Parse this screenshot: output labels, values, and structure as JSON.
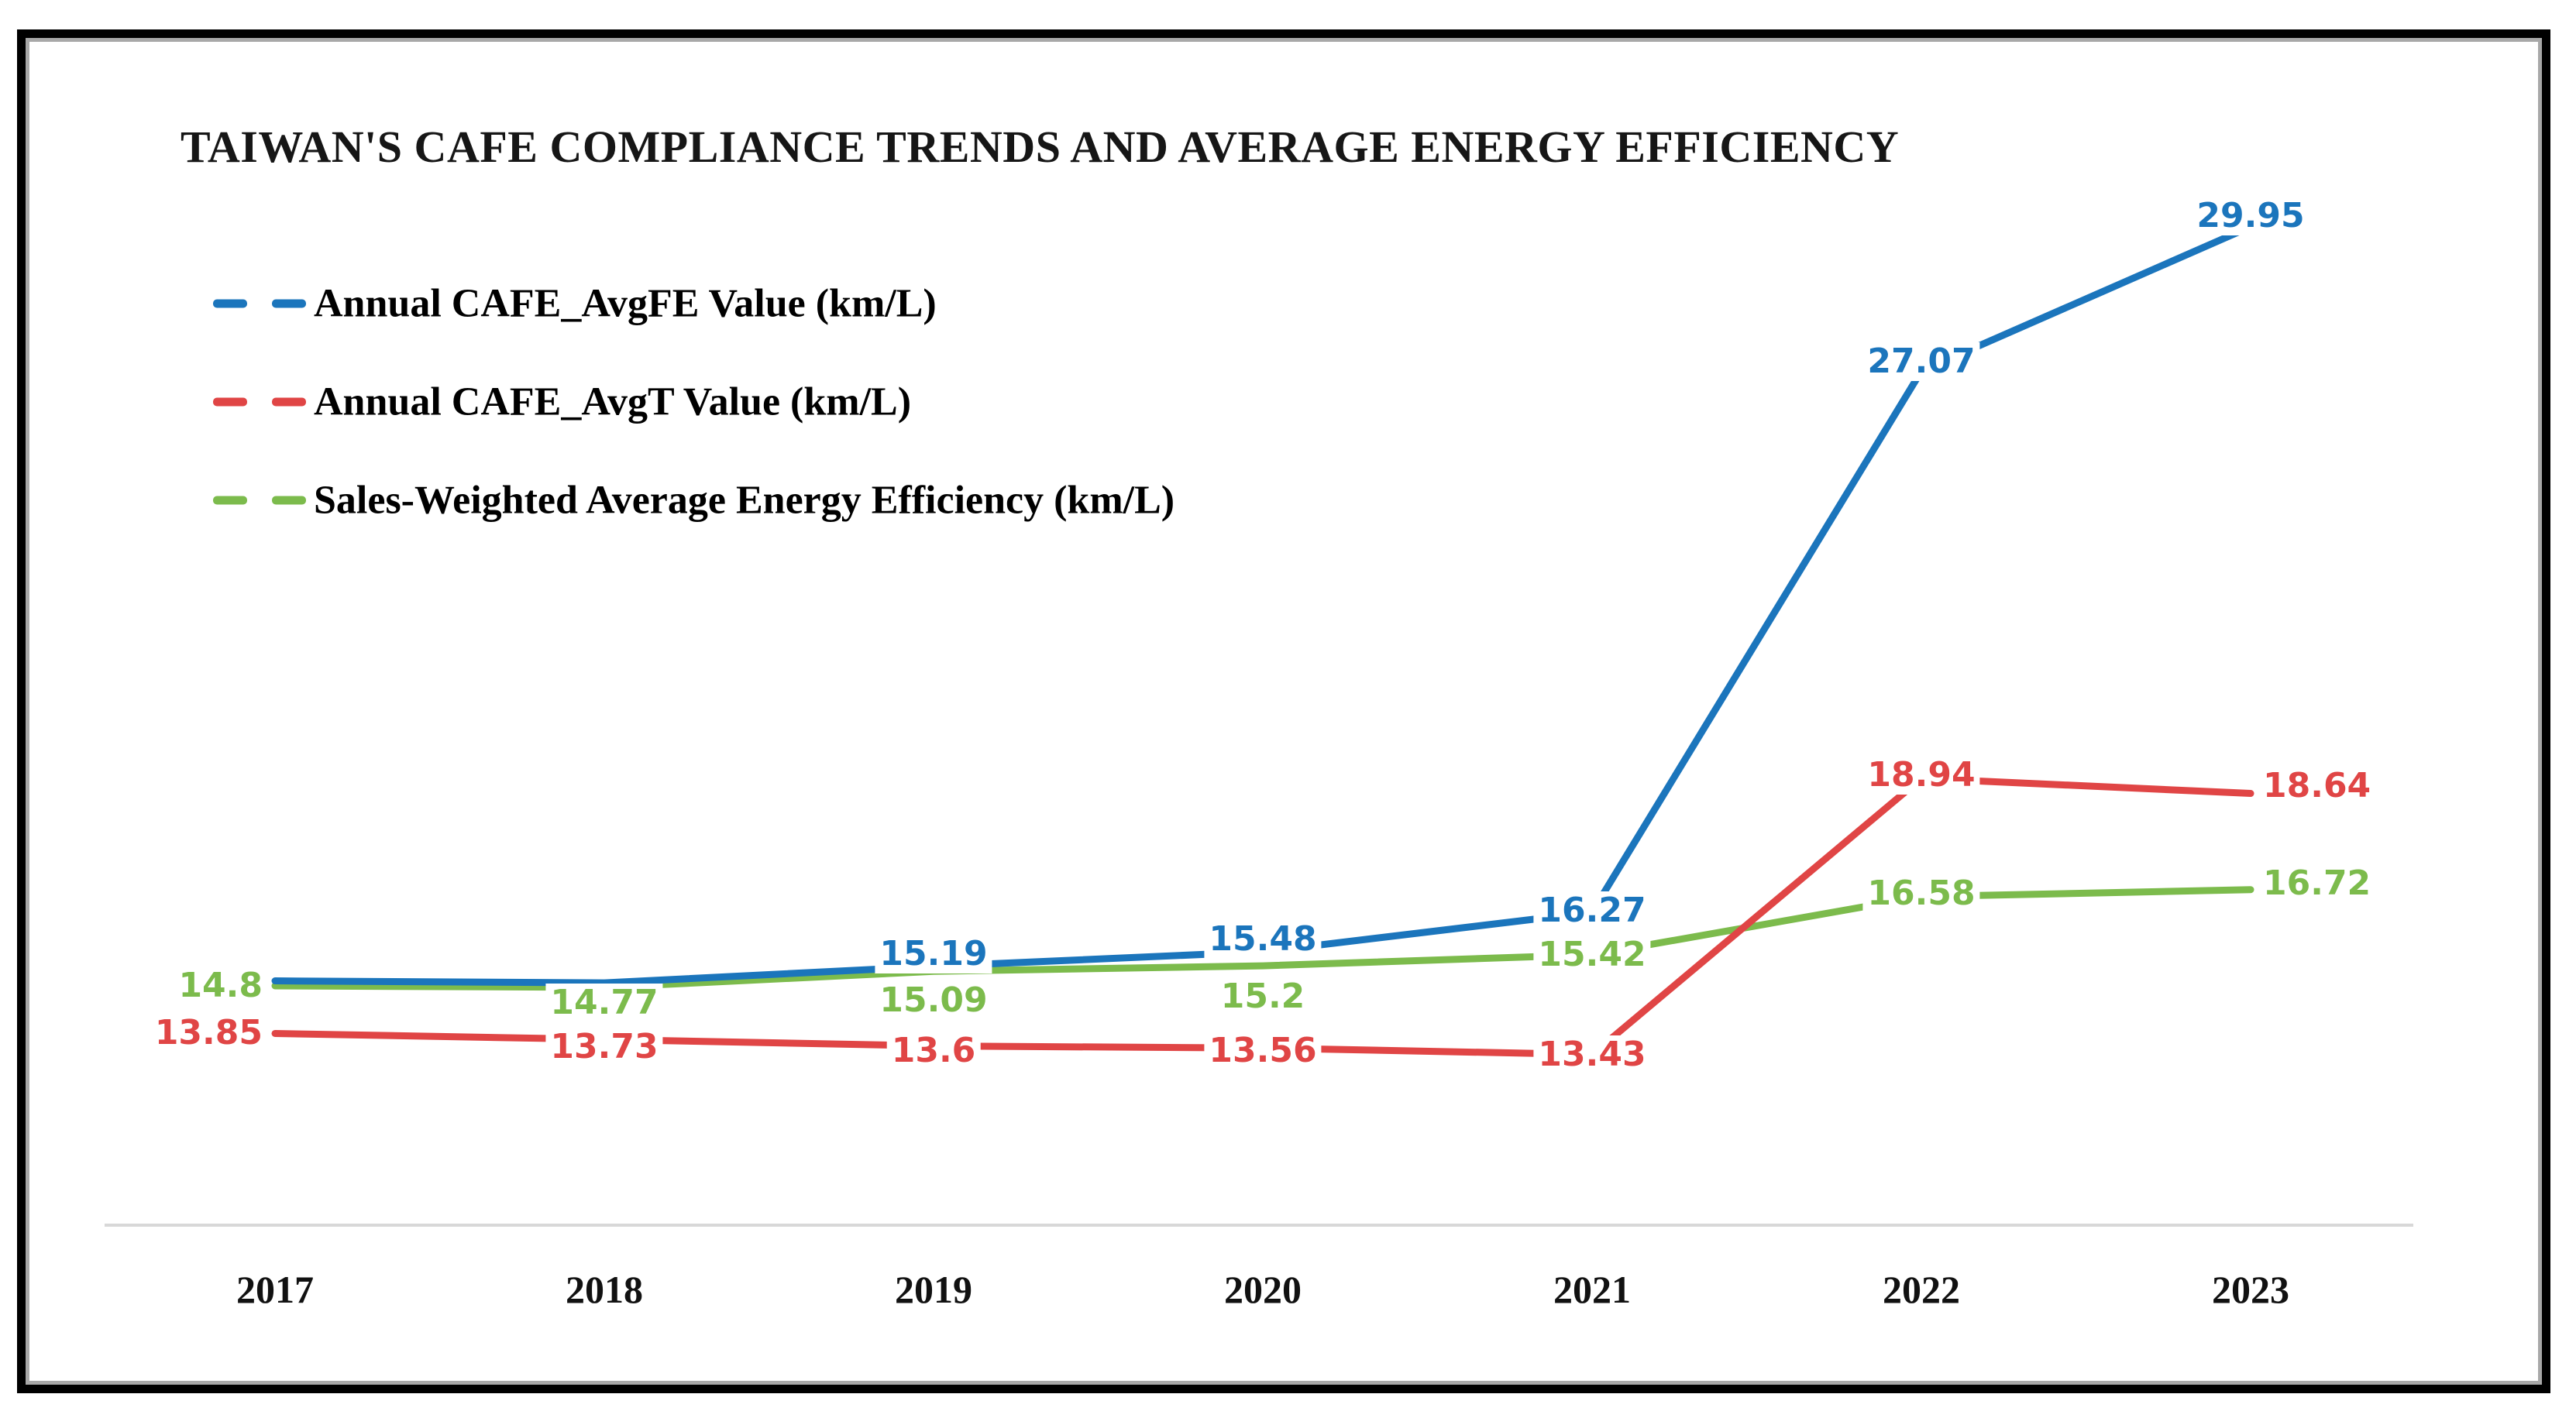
{
  "window": {
    "background": "#ffffff",
    "border_color": "#000000",
    "border_inner_edge_color": "#a8a8a8"
  },
  "title": "TAIWAN'S CAFE COMPLIANCE TRENDS AND AVERAGE ENERGY EFFICIENCY",
  "legend": {
    "position": "top-left",
    "items": [
      {
        "label": "Annual CAFE_AvgFE Value (km/L)",
        "color": "#1b75bc"
      },
      {
        "label": "Annual CAFE_AvgT Value (km/L)",
        "color": "#e04545"
      },
      {
        "label": "Sales-Weighted Average Energy Efficiency (km/L)",
        "color": "#7cbb4c"
      }
    ]
  },
  "chart_data": {
    "type": "line",
    "title": "TAIWAN'S CAFE COMPLIANCE TRENDS AND AVERAGE ENERGY EFFICIENCY",
    "categories": [
      "2017",
      "2018",
      "2019",
      "2020",
      "2021",
      "2022",
      "2023"
    ],
    "series": [
      {
        "name": "Annual CAFE_AvgFE Value (km/L)",
        "color": "#1b75bc",
        "values": [
          14.9,
          14.86,
          15.19,
          15.48,
          16.27,
          27.07,
          29.95
        ],
        "labels": [
          null,
          null,
          "15.19",
          "15.48",
          "16.27",
          "27.07",
          "29.95"
        ]
      },
      {
        "name": "Annual CAFE_AvgT Value (km/L)",
        "color": "#e04545",
        "values": [
          13.85,
          13.73,
          13.6,
          13.56,
          13.43,
          18.94,
          18.64
        ],
        "labels": [
          "13.85",
          "13.73",
          "13.6",
          "13.56",
          "13.43",
          "18.94",
          "18.64"
        ]
      },
      {
        "name": "Sales-Weighted Average Energy Efficiency (km/L)",
        "color": "#7cbb4c",
        "values": [
          14.8,
          14.77,
          15.09,
          15.2,
          15.42,
          16.58,
          16.72
        ],
        "labels": [
          "14.8",
          "14.77",
          "15.09",
          "15.2",
          "15.42",
          "16.58",
          "16.72"
        ]
      }
    ],
    "xlabel": "",
    "ylabel": "",
    "ylim": [
      13,
      31
    ],
    "grid": false,
    "y_axis_shown": false,
    "legend_position": "top-left",
    "axis_line_color": "#d8d8d8",
    "line_width": 9
  }
}
